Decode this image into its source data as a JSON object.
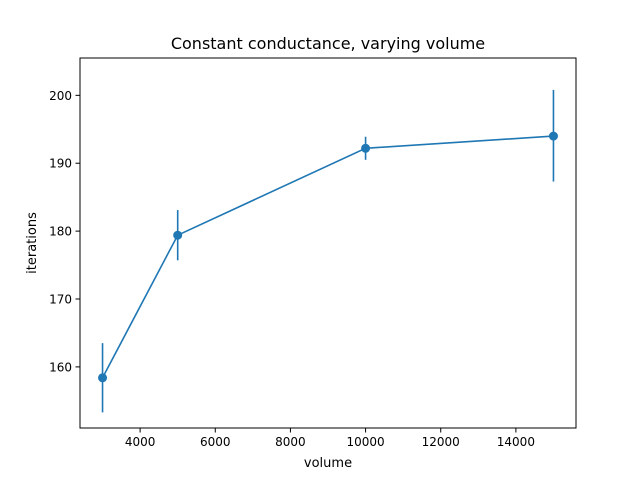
{
  "colors": {
    "series": "#1f77b4",
    "axis": "#000000",
    "background": "#ffffff"
  },
  "chart_data": {
    "type": "line",
    "title": "Constant conductance, varying volume",
    "xlabel": "volume",
    "ylabel": "iterations",
    "xlim": [
      2400,
      15600
    ],
    "ylim": [
      151,
      205.5
    ],
    "grid": false,
    "xticks": [
      4000,
      6000,
      8000,
      10000,
      12000,
      14000
    ],
    "yticks": [
      160,
      170,
      180,
      190,
      200
    ],
    "series": [
      {
        "x": [
          3000,
          5000,
          10000,
          15000
        ],
        "y": [
          158.4,
          179.4,
          192.2,
          194.0
        ],
        "err_low": [
          153.3,
          175.7,
          190.5,
          187.3
        ],
        "err_high": [
          163.5,
          183.1,
          193.9,
          200.8
        ]
      }
    ]
  }
}
